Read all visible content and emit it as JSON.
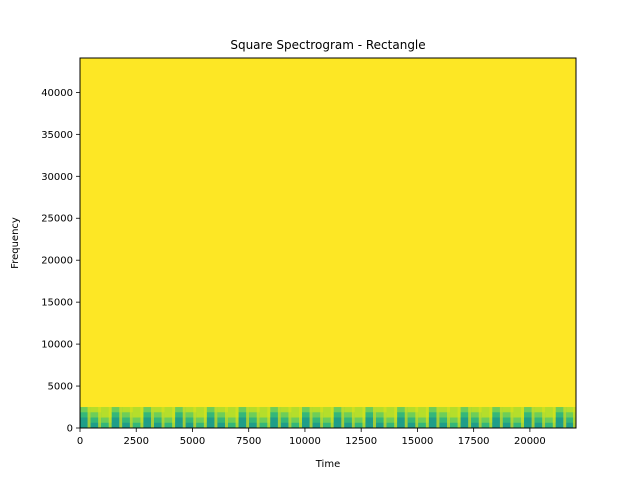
{
  "chart_data": {
    "type": "heatmap",
    "title": "Square Spectrogram - Rectangle",
    "xlabel": "Time",
    "ylabel": "Frequency",
    "xlim": [
      0,
      22050
    ],
    "ylim": [
      0,
      44100
    ],
    "xticks": [
      0,
      2500,
      5000,
      7500,
      10000,
      12500,
      15000,
      17500,
      20000
    ],
    "xtick_labels": [
      "0",
      "2500",
      "5000",
      "7500",
      "10000",
      "12500",
      "15000",
      "17500",
      "20000"
    ],
    "yticks": [
      0,
      5000,
      10000,
      15000,
      20000,
      25000,
      30000,
      35000,
      40000
    ],
    "ytick_labels": [
      "0",
      "5000",
      "10000",
      "15000",
      "20000",
      "25000",
      "30000",
      "35000",
      "40000"
    ],
    "colormap": "viridis",
    "background_color": "#fde725",
    "low_band": {
      "freq_range": [
        0,
        2500
      ],
      "colors": [
        "#b5de2b",
        "#6ece58",
        "#35b779",
        "#1f9e89"
      ]
    },
    "grid": false,
    "legend": "none"
  }
}
